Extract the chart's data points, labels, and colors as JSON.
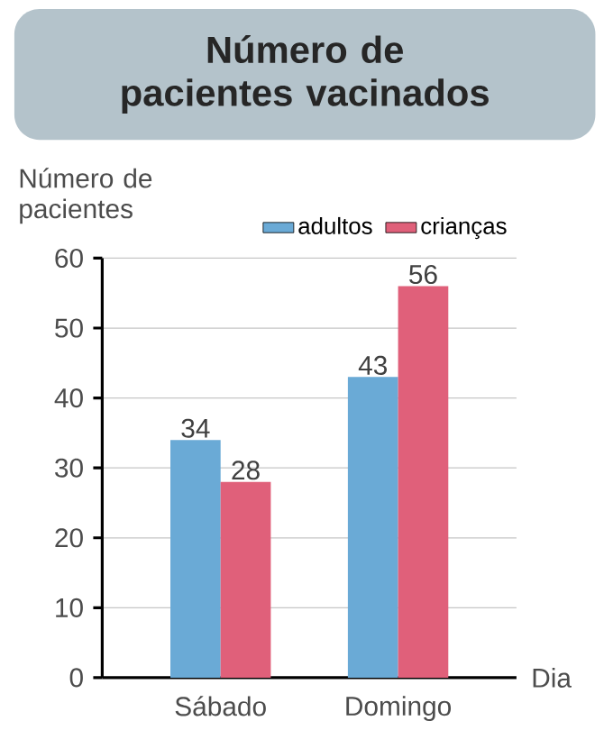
{
  "chart_data": {
    "type": "bar",
    "title": "Número de pacientes vacinados",
    "xlabel": "Dia",
    "ylabel": "Número de pacientes",
    "categories": [
      "Sábado",
      "Domingo"
    ],
    "series": [
      {
        "name": "adultos",
        "color": "#6aaad6",
        "values": [
          34,
          43
        ]
      },
      {
        "name": "crianças",
        "color": "#e0607a",
        "values": [
          28,
          56
        ]
      }
    ],
    "ylim": [
      0,
      60
    ],
    "yticks": [
      0,
      10,
      20,
      30,
      40,
      50,
      60
    ],
    "grid": "y",
    "legend": "top right",
    "data_labels": true
  }
}
